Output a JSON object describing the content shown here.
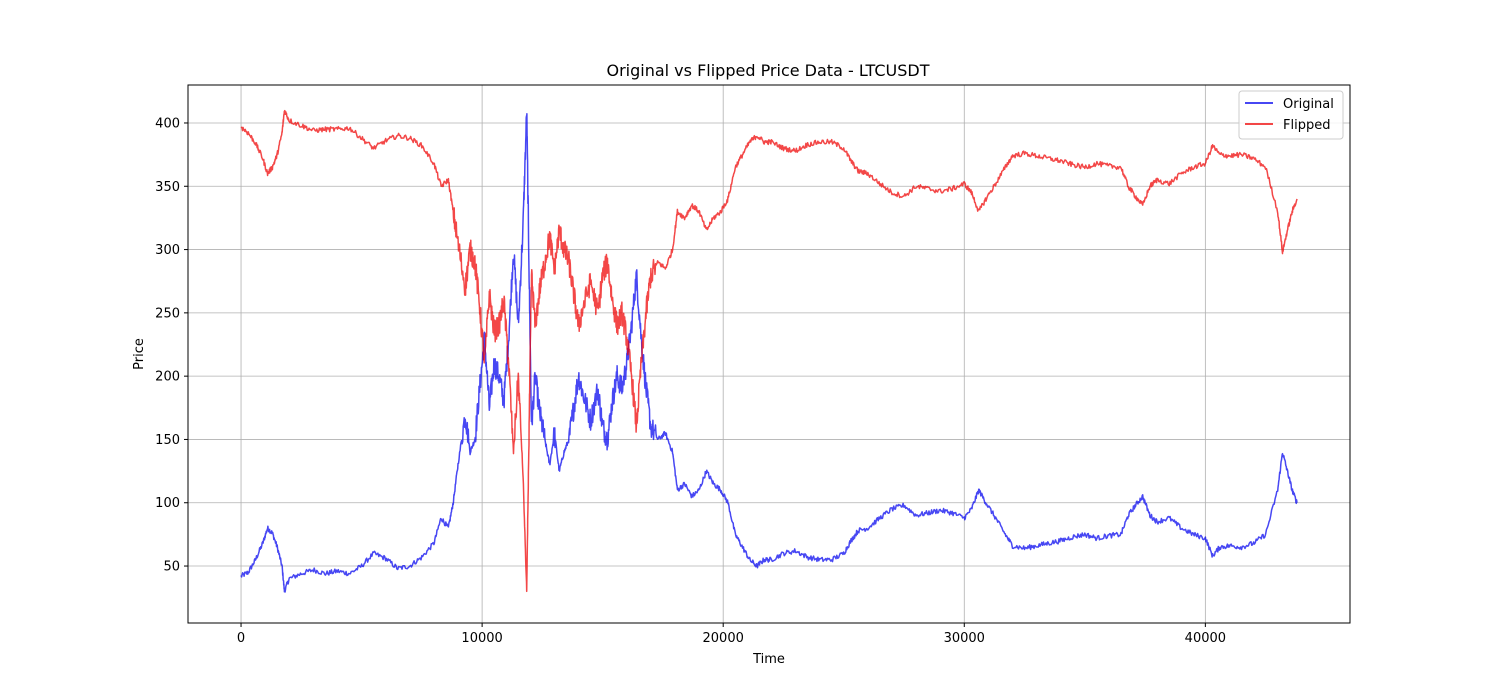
{
  "chart_data": {
    "type": "line",
    "title": "Original vs Flipped Price Data - LTCUSDT",
    "xlabel": "Time",
    "ylabel": "Price",
    "xlim": [
      -2200,
      46000
    ],
    "ylim": [
      5,
      430
    ],
    "xticks": [
      0,
      10000,
      20000,
      30000,
      40000
    ],
    "yticks": [
      50,
      100,
      150,
      200,
      250,
      300,
      350,
      400
    ],
    "grid": true,
    "legend_position": "top-right",
    "series": [
      {
        "name": "Original",
        "color": "#0000ee",
        "points": [
          [
            0,
            42
          ],
          [
            300,
            45
          ],
          [
            600,
            55
          ],
          [
            900,
            68
          ],
          [
            1100,
            80
          ],
          [
            1300,
            76
          ],
          [
            1500,
            65
          ],
          [
            1700,
            50
          ],
          [
            1800,
            30
          ],
          [
            2000,
            40
          ],
          [
            2500,
            44
          ],
          [
            3000,
            47
          ],
          [
            3500,
            44
          ],
          [
            4000,
            46
          ],
          [
            4500,
            44
          ],
          [
            5000,
            50
          ],
          [
            5500,
            60
          ],
          [
            6000,
            56
          ],
          [
            6500,
            48
          ],
          [
            7000,
            50
          ],
          [
            7500,
            57
          ],
          [
            8000,
            68
          ],
          [
            8300,
            88
          ],
          [
            8600,
            80
          ],
          [
            8800,
            100
          ],
          [
            9000,
            130
          ],
          [
            9300,
            170
          ],
          [
            9500,
            140
          ],
          [
            9700,
            150
          ],
          [
            9900,
            190
          ],
          [
            10100,
            230
          ],
          [
            10300,
            175
          ],
          [
            10500,
            210
          ],
          [
            10700,
            200
          ],
          [
            10900,
            180
          ],
          [
            11100,
            230
          ],
          [
            11300,
            300
          ],
          [
            11500,
            240
          ],
          [
            11700,
            320
          ],
          [
            11850,
            410
          ],
          [
            11950,
            280
          ],
          [
            12050,
            160
          ],
          [
            12200,
            200
          ],
          [
            12400,
            170
          ],
          [
            12600,
            150
          ],
          [
            12800,
            130
          ],
          [
            13000,
            155
          ],
          [
            13200,
            125
          ],
          [
            13400,
            140
          ],
          [
            13600,
            150
          ],
          [
            13800,
            175
          ],
          [
            14000,
            200
          ],
          [
            14200,
            185
          ],
          [
            14500,
            165
          ],
          [
            14800,
            190
          ],
          [
            15000,
            160
          ],
          [
            15200,
            150
          ],
          [
            15400,
            180
          ],
          [
            15600,
            200
          ],
          [
            15800,
            190
          ],
          [
            16000,
            210
          ],
          [
            16200,
            240
          ],
          [
            16400,
            280
          ],
          [
            16600,
            230
          ],
          [
            16800,
            190
          ],
          [
            17000,
            160
          ],
          [
            17300,
            150
          ],
          [
            17600,
            155
          ],
          [
            17900,
            140
          ],
          [
            18100,
            110
          ],
          [
            18400,
            115
          ],
          [
            18700,
            105
          ],
          [
            19000,
            110
          ],
          [
            19300,
            125
          ],
          [
            19600,
            115
          ],
          [
            19900,
            110
          ],
          [
            20200,
            100
          ],
          [
            20500,
            75
          ],
          [
            20800,
            65
          ],
          [
            21100,
            55
          ],
          [
            21400,
            50
          ],
          [
            21700,
            55
          ],
          [
            22000,
            55
          ],
          [
            22500,
            60
          ],
          [
            23000,
            62
          ],
          [
            23500,
            57
          ],
          [
            24000,
            55
          ],
          [
            24500,
            55
          ],
          [
            25000,
            60
          ],
          [
            25300,
            70
          ],
          [
            25600,
            78
          ],
          [
            26000,
            80
          ],
          [
            26500,
            88
          ],
          [
            27000,
            95
          ],
          [
            27500,
            98
          ],
          [
            28000,
            90
          ],
          [
            28500,
            92
          ],
          [
            29000,
            94
          ],
          [
            29500,
            92
          ],
          [
            30000,
            88
          ],
          [
            30300,
            95
          ],
          [
            30600,
            110
          ],
          [
            30900,
            100
          ],
          [
            31300,
            88
          ],
          [
            31700,
            75
          ],
          [
            32000,
            66
          ],
          [
            32500,
            64
          ],
          [
            33000,
            66
          ],
          [
            33500,
            68
          ],
          [
            34000,
            70
          ],
          [
            34500,
            73
          ],
          [
            35000,
            75
          ],
          [
            35500,
            72
          ],
          [
            36000,
            74
          ],
          [
            36500,
            75
          ],
          [
            36800,
            90
          ],
          [
            37100,
            98
          ],
          [
            37400,
            105
          ],
          [
            37700,
            90
          ],
          [
            38000,
            85
          ],
          [
            38500,
            88
          ],
          [
            39000,
            80
          ],
          [
            39500,
            75
          ],
          [
            40000,
            72
          ],
          [
            40300,
            58
          ],
          [
            40600,
            65
          ],
          [
            41000,
            66
          ],
          [
            41500,
            65
          ],
          [
            42000,
            68
          ],
          [
            42500,
            75
          ],
          [
            43000,
            110
          ],
          [
            43200,
            140
          ],
          [
            43400,
            125
          ],
          [
            43600,
            110
          ],
          [
            43800,
            100
          ]
        ]
      },
      {
        "name": "Flipped",
        "color": "#ee0000",
        "points": [
          [
            0,
            397
          ],
          [
            300,
            392
          ],
          [
            600,
            384
          ],
          [
            900,
            372
          ],
          [
            1100,
            360
          ],
          [
            1300,
            365
          ],
          [
            1500,
            375
          ],
          [
            1700,
            392
          ],
          [
            1800,
            410
          ],
          [
            2000,
            402
          ],
          [
            2500,
            398
          ],
          [
            3000,
            394
          ],
          [
            3500,
            395
          ],
          [
            4000,
            395
          ],
          [
            4500,
            396
          ],
          [
            5000,
            388
          ],
          [
            5500,
            380
          ],
          [
            6000,
            386
          ],
          [
            6500,
            390
          ],
          [
            7000,
            388
          ],
          [
            7500,
            382
          ],
          [
            8000,
            368
          ],
          [
            8300,
            350
          ],
          [
            8600,
            355
          ],
          [
            8800,
            330
          ],
          [
            9000,
            305
          ],
          [
            9300,
            270
          ],
          [
            9500,
            300
          ],
          [
            9700,
            290
          ],
          [
            9900,
            255
          ],
          [
            10100,
            210
          ],
          [
            10300,
            265
          ],
          [
            10500,
            235
          ],
          [
            10700,
            240
          ],
          [
            10900,
            260
          ],
          [
            11100,
            210
          ],
          [
            11300,
            140
          ],
          [
            11500,
            200
          ],
          [
            11700,
            120
          ],
          [
            11850,
            30
          ],
          [
            11950,
            160
          ],
          [
            12050,
            280
          ],
          [
            12200,
            240
          ],
          [
            12400,
            270
          ],
          [
            12600,
            290
          ],
          [
            12800,
            310
          ],
          [
            13000,
            285
          ],
          [
            13200,
            315
          ],
          [
            13400,
            300
          ],
          [
            13600,
            290
          ],
          [
            13800,
            265
          ],
          [
            14000,
            240
          ],
          [
            14200,
            255
          ],
          [
            14500,
            275
          ],
          [
            14800,
            250
          ],
          [
            15000,
            280
          ],
          [
            15200,
            290
          ],
          [
            15400,
            260
          ],
          [
            15600,
            240
          ],
          [
            15800,
            250
          ],
          [
            16000,
            230
          ],
          [
            16200,
            200
          ],
          [
            16400,
            160
          ],
          [
            16600,
            210
          ],
          [
            16800,
            250
          ],
          [
            17000,
            280
          ],
          [
            17300,
            290
          ],
          [
            17600,
            285
          ],
          [
            17900,
            300
          ],
          [
            18100,
            330
          ],
          [
            18400,
            325
          ],
          [
            18700,
            335
          ],
          [
            19000,
            330
          ],
          [
            19300,
            315
          ],
          [
            19600,
            325
          ],
          [
            19900,
            330
          ],
          [
            20200,
            340
          ],
          [
            20500,
            365
          ],
          [
            20800,
            375
          ],
          [
            21100,
            385
          ],
          [
            21400,
            390
          ],
          [
            21700,
            385
          ],
          [
            22000,
            385
          ],
          [
            22500,
            380
          ],
          [
            23000,
            378
          ],
          [
            23500,
            383
          ],
          [
            24000,
            385
          ],
          [
            24500,
            385
          ],
          [
            25000,
            380
          ],
          [
            25300,
            370
          ],
          [
            25600,
            362
          ],
          [
            26000,
            360
          ],
          [
            26500,
            352
          ],
          [
            27000,
            345
          ],
          [
            27500,
            342
          ],
          [
            28000,
            350
          ],
          [
            28500,
            348
          ],
          [
            29000,
            346
          ],
          [
            29500,
            348
          ],
          [
            30000,
            352
          ],
          [
            30300,
            345
          ],
          [
            30600,
            330
          ],
          [
            30900,
            340
          ],
          [
            31300,
            352
          ],
          [
            31700,
            365
          ],
          [
            32000,
            374
          ],
          [
            32500,
            376
          ],
          [
            33000,
            374
          ],
          [
            33500,
            372
          ],
          [
            34000,
            370
          ],
          [
            34500,
            367
          ],
          [
            35000,
            365
          ],
          [
            35500,
            368
          ],
          [
            36000,
            366
          ],
          [
            36500,
            365
          ],
          [
            36800,
            350
          ],
          [
            37100,
            342
          ],
          [
            37400,
            335
          ],
          [
            37700,
            350
          ],
          [
            38000,
            355
          ],
          [
            38500,
            352
          ],
          [
            39000,
            360
          ],
          [
            39500,
            365
          ],
          [
            40000,
            368
          ],
          [
            40300,
            382
          ],
          [
            40600,
            375
          ],
          [
            41000,
            374
          ],
          [
            41500,
            375
          ],
          [
            42000,
            372
          ],
          [
            42500,
            365
          ],
          [
            43000,
            330
          ],
          [
            43200,
            298
          ],
          [
            43400,
            315
          ],
          [
            43600,
            330
          ],
          [
            43800,
            340
          ]
        ]
      }
    ]
  }
}
